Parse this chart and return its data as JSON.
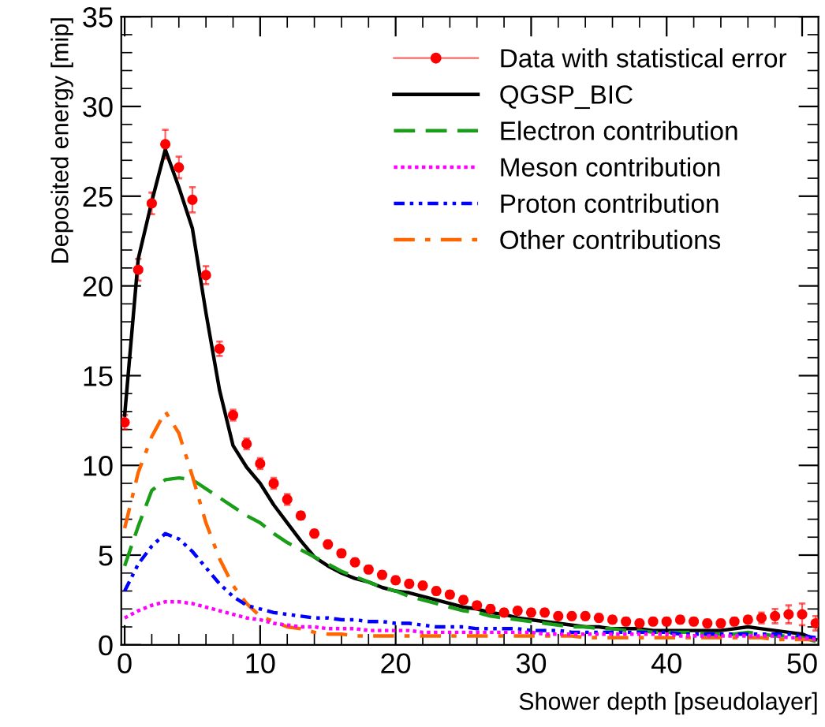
{
  "chart_data": {
    "type": "line",
    "xlabel": "Shower depth [pseudolayer]",
    "ylabel": "Deposited energy [mip]",
    "xlim": [
      -0.25,
      51.2
    ],
    "xticks": [
      0,
      10,
      20,
      30,
      40,
      50
    ],
    "ylim": [
      0,
      35
    ],
    "yticks": [
      0,
      5,
      10,
      15,
      20,
      25,
      30,
      35
    ],
    "grid": false,
    "legend": "top right",
    "x": [
      0,
      1,
      2,
      3,
      4,
      5,
      6,
      7,
      8,
      9,
      10,
      11,
      12,
      13,
      14,
      15,
      16,
      17,
      18,
      19,
      20,
      21,
      22,
      23,
      24,
      25,
      26,
      27,
      28,
      29,
      30,
      31,
      32,
      33,
      34,
      35,
      36,
      37,
      38,
      39,
      40,
      41,
      42,
      43,
      44,
      45,
      46,
      47,
      48,
      49,
      50,
      51
    ],
    "series": [
      {
        "name": "Data with statistical error",
        "type": "scatter",
        "marker": "circle",
        "color": "#ff0000",
        "values": [
          12.4,
          20.9,
          24.6,
          27.9,
          26.6,
          24.8,
          20.6,
          16.5,
          12.8,
          11.2,
          10.1,
          9.0,
          8.1,
          7.2,
          6.2,
          5.6,
          5.1,
          4.6,
          4.2,
          3.9,
          3.6,
          3.4,
          3.3,
          3.0,
          2.8,
          2.5,
          2.2,
          2.0,
          1.8,
          1.9,
          1.8,
          1.8,
          1.6,
          1.6,
          1.6,
          1.5,
          1.4,
          1.3,
          1.2,
          1.3,
          1.3,
          1.4,
          1.3,
          1.2,
          1.2,
          1.3,
          1.4,
          1.5,
          1.6,
          1.7,
          1.7,
          1.2
        ],
        "errors": [
          0.4,
          0.6,
          0.6,
          0.8,
          0.6,
          0.7,
          0.5,
          0.4,
          0.3,
          0.3,
          0.3,
          0.3,
          0.3,
          0.2,
          0.2,
          0.2,
          0.2,
          0.2,
          0.2,
          0.2,
          0.2,
          0.2,
          0.2,
          0.2,
          0.2,
          0.2,
          0.2,
          0.2,
          0.2,
          0.2,
          0.2,
          0.2,
          0.2,
          0.2,
          0.2,
          0.2,
          0.2,
          0.2,
          0.2,
          0.2,
          0.2,
          0.2,
          0.2,
          0.2,
          0.2,
          0.2,
          0.2,
          0.3,
          0.4,
          0.5,
          0.6,
          0.4
        ]
      },
      {
        "name": "QGSP_BIC",
        "color": "#000000",
        "line_style": "solid",
        "values": [
          12.8,
          21.5,
          24.7,
          27.6,
          25.5,
          23.2,
          18.5,
          14.2,
          11.1,
          9.9,
          9.0,
          7.8,
          6.8,
          5.8,
          4.9,
          4.4,
          4.0,
          3.7,
          3.5,
          3.2,
          3.0,
          2.9,
          2.7,
          2.5,
          2.3,
          2.1,
          2.0,
          1.8,
          1.7,
          1.5,
          1.4,
          1.3,
          1.2,
          1.1,
          1.0,
          1.0,
          0.9,
          0.9,
          0.9,
          0.8,
          0.8,
          0.8,
          0.8,
          0.8,
          0.8,
          0.9,
          1.0,
          0.9,
          0.8,
          0.7,
          0.6,
          0.3
        ]
      },
      {
        "name": "Electron contribution",
        "color": "#1a9e1a",
        "line_style": "dashed",
        "values": [
          4.4,
          6.6,
          8.6,
          9.2,
          9.3,
          9.2,
          8.7,
          8.2,
          7.7,
          7.2,
          6.8,
          6.2,
          5.7,
          5.3,
          4.9,
          4.5,
          4.1,
          3.8,
          3.5,
          3.2,
          3.0,
          2.7,
          2.5,
          2.3,
          2.1,
          1.9,
          1.8,
          1.6,
          1.5,
          1.4,
          1.3,
          1.2,
          1.1,
          1.0,
          1.0,
          0.9,
          0.9,
          0.8,
          0.8,
          0.7,
          0.7,
          0.7,
          0.7,
          0.6,
          0.6,
          0.6,
          0.7,
          0.6,
          0.5,
          0.5,
          0.4,
          0.2
        ]
      },
      {
        "name": "Meson contribution",
        "color": "#ff00ff",
        "line_style": "dotted",
        "values": [
          1.5,
          1.9,
          2.2,
          2.4,
          2.4,
          2.3,
          2.1,
          1.9,
          1.7,
          1.5,
          1.4,
          1.2,
          1.1,
          1.0,
          1.0,
          0.9,
          0.9,
          0.9,
          0.8,
          0.8,
          0.8,
          0.8,
          0.7,
          0.7,
          0.7,
          0.7,
          0.7,
          0.7,
          0.7,
          0.7,
          0.7,
          0.6,
          0.6,
          0.6,
          0.6,
          0.6,
          0.6,
          0.6,
          0.6,
          0.6,
          0.6,
          0.5,
          0.5,
          0.5,
          0.5,
          0.5,
          0.5,
          0.5,
          0.5,
          0.4,
          0.4,
          0.3
        ]
      },
      {
        "name": "Proton contribution",
        "color": "#0000ff",
        "line_style": "dashdot",
        "values": [
          3.0,
          4.5,
          5.5,
          6.2,
          5.9,
          5.2,
          4.3,
          3.4,
          2.7,
          2.2,
          2.0,
          1.8,
          1.7,
          1.6,
          1.5,
          1.5,
          1.4,
          1.4,
          1.3,
          1.3,
          1.2,
          1.2,
          1.1,
          1.0,
          1.0,
          1.0,
          0.9,
          0.9,
          0.9,
          0.9,
          0.8,
          0.8,
          0.8,
          0.7,
          0.7,
          0.7,
          0.7,
          0.7,
          0.7,
          0.7,
          0.7,
          0.6,
          0.6,
          0.6,
          0.6,
          0.6,
          0.6,
          0.6,
          0.6,
          0.6,
          0.5,
          0.4
        ]
      },
      {
        "name": "Other contributions",
        "color": "#ff6600",
        "line_style": "longdashdot",
        "values": [
          6.5,
          9.6,
          11.6,
          13.0,
          11.8,
          9.4,
          6.8,
          4.8,
          3.3,
          2.3,
          1.6,
          1.3,
          1.0,
          0.9,
          0.7,
          0.6,
          0.6,
          0.5,
          0.5,
          0.5,
          0.5,
          0.5,
          0.5,
          0.5,
          0.5,
          0.5,
          0.5,
          0.5,
          0.5,
          0.5,
          0.5,
          0.5,
          0.5,
          0.5,
          0.4,
          0.4,
          0.4,
          0.4,
          0.4,
          0.4,
          0.4,
          0.4,
          0.4,
          0.4,
          0.4,
          0.4,
          0.4,
          0.4,
          0.3,
          0.3,
          0.3,
          0.3
        ]
      }
    ]
  }
}
